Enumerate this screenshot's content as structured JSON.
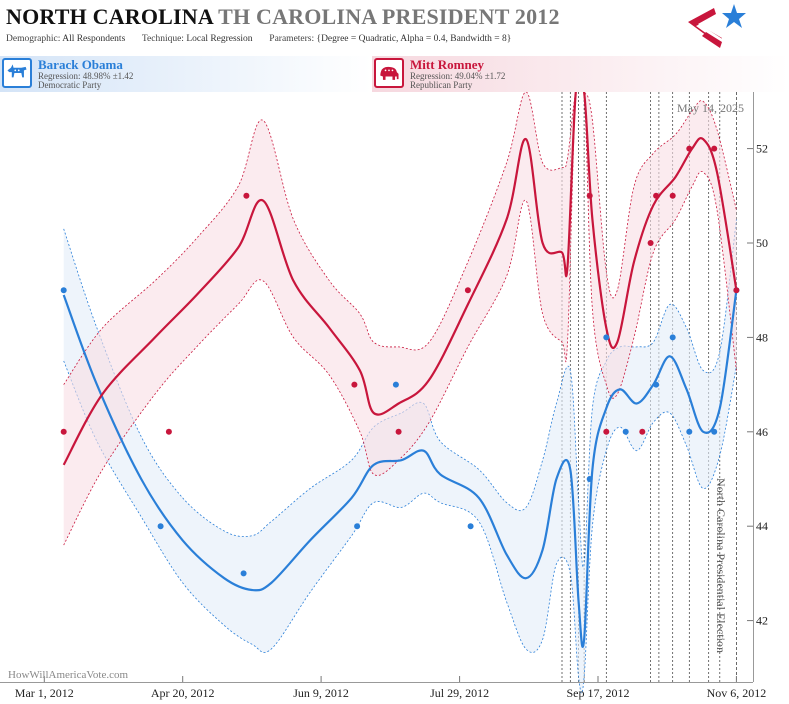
{
  "header": {
    "title_state": "NORTH CAROLINA",
    "title_rest": "TH CAROLINA PRESIDENT 2012",
    "demographic_label": "Demographic:",
    "demographic_value": "All Respondents",
    "technique_label": "Technique:",
    "technique_value": "Local Regression",
    "parameters_label": "Parameters:",
    "parameters_value": "{Degree = Quadratic, Alpha = 0.4, Bandwidth = 8}"
  },
  "candidates": [
    {
      "name": "Barack Obama",
      "regression": "Regression: 48.98% ±1.42",
      "party": "Democratic Party",
      "color": "#2a7fd8",
      "icon": "donkey-icon"
    },
    {
      "name": "Mitt Romney",
      "regression": "Regression: 49.04% ±1.72",
      "party": "Republican Party",
      "color": "#c8163c",
      "icon": "elephant-icon"
    }
  ],
  "date_stamp": "May 14, 2025",
  "watermark": "HowWillAmericaVote.com",
  "election_label": "North Carolina Presidential Election",
  "chart_data": {
    "type": "line",
    "x_axis": {
      "min": "2012-02-14",
      "max": "2012-11-12",
      "ticks": [
        "Mar 1, 2012",
        "Apr 20, 2012",
        "Jun 9, 2012",
        "Jul 29, 2012",
        "Sep 17, 2012",
        "Nov 6, 2012"
      ],
      "tick_dates": [
        "2012-03-01",
        "2012-04-20",
        "2012-06-09",
        "2012-07-29",
        "2012-09-17",
        "2012-11-06"
      ]
    },
    "y_axis": {
      "min": 40.7,
      "max": 53.2,
      "ticks": [
        42,
        44,
        46,
        48,
        50,
        52
      ],
      "position": "right"
    },
    "election_date": "2012-11-06",
    "poll_dates": [
      "2012-09-04",
      "2012-09-07",
      "2012-09-10",
      "2012-09-12",
      "2012-09-20",
      "2012-10-06",
      "2012-10-09",
      "2012-10-14",
      "2012-10-20",
      "2012-10-27",
      "2012-10-31"
    ],
    "series": [
      {
        "name": "Barack Obama",
        "color": "#2a7fd8",
        "points": [
          {
            "x": "2012-03-08",
            "y": 49
          },
          {
            "x": "2012-04-12",
            "y": 44
          },
          {
            "x": "2012-05-12",
            "y": 43
          },
          {
            "x": "2012-06-22",
            "y": 44
          },
          {
            "x": "2012-07-06",
            "y": 47
          },
          {
            "x": "2012-08-02",
            "y": 44
          },
          {
            "x": "2012-09-14",
            "y": 45
          },
          {
            "x": "2012-09-20",
            "y": 48
          },
          {
            "x": "2012-09-27",
            "y": 46
          },
          {
            "x": "2012-10-08",
            "y": 47
          },
          {
            "x": "2012-10-14",
            "y": 48
          },
          {
            "x": "2012-10-20",
            "y": 46
          },
          {
            "x": "2012-10-29",
            "y": 46
          },
          {
            "x": "2012-11-06",
            "y": 49
          }
        ],
        "fit": [
          {
            "x": "2012-03-08",
            "y": 48.9,
            "lo": 47.5,
            "hi": 50.3
          },
          {
            "x": "2012-03-20",
            "y": 47.0,
            "lo": 45.8,
            "hi": 48.2
          },
          {
            "x": "2012-04-05",
            "y": 45.0,
            "lo": 44.2,
            "hi": 45.9
          },
          {
            "x": "2012-04-20",
            "y": 43.7,
            "lo": 42.8,
            "hi": 44.6
          },
          {
            "x": "2012-05-05",
            "y": 42.9,
            "lo": 41.9,
            "hi": 43.9
          },
          {
            "x": "2012-05-15",
            "y": 42.65,
            "lo": 41.5,
            "hi": 43.8
          },
          {
            "x": "2012-05-22",
            "y": 42.8,
            "lo": 41.4,
            "hi": 44.1
          },
          {
            "x": "2012-06-05",
            "y": 43.7,
            "lo": 42.6,
            "hi": 44.8
          },
          {
            "x": "2012-06-20",
            "y": 44.6,
            "lo": 43.8,
            "hi": 45.4
          },
          {
            "x": "2012-06-28",
            "y": 45.3,
            "lo": 44.5,
            "hi": 46.1
          },
          {
            "x": "2012-07-08",
            "y": 45.4,
            "lo": 44.4,
            "hi": 46.4
          },
          {
            "x": "2012-07-16",
            "y": 45.6,
            "lo": 44.7,
            "hi": 46.6
          },
          {
            "x": "2012-07-22",
            "y": 45.1,
            "lo": 44.5,
            "hi": 45.8
          },
          {
            "x": "2012-08-05",
            "y": 44.6,
            "lo": 44.1,
            "hi": 45.2
          },
          {
            "x": "2012-08-15",
            "y": 43.4,
            "lo": 42.4,
            "hi": 44.5
          },
          {
            "x": "2012-08-22",
            "y": 42.9,
            "lo": 41.4,
            "hi": 44.4
          },
          {
            "x": "2012-08-28",
            "y": 43.5,
            "lo": 41.6,
            "hi": 45.4
          },
          {
            "x": "2012-09-02",
            "y": 45.0,
            "lo": 43.2,
            "hi": 46.6
          },
          {
            "x": "2012-09-07",
            "y": 45.2,
            "lo": 43.0,
            "hi": 47.3
          },
          {
            "x": "2012-09-10",
            "y": 42.4,
            "lo": 40.8,
            "hi": 44.5
          },
          {
            "x": "2012-09-12",
            "y": 41.6,
            "lo": 40.8,
            "hi": 43.2
          },
          {
            "x": "2012-09-15",
            "y": 45.2,
            "lo": 44.0,
            "hi": 46.5
          },
          {
            "x": "2012-09-20",
            "y": 46.5,
            "lo": 45.6,
            "hi": 47.5
          },
          {
            "x": "2012-09-25",
            "y": 46.9,
            "lo": 46.1,
            "hi": 47.8
          },
          {
            "x": "2012-10-01",
            "y": 46.6,
            "lo": 45.6,
            "hi": 47.8
          },
          {
            "x": "2012-10-07",
            "y": 47.0,
            "lo": 46.2,
            "hi": 47.9
          },
          {
            "x": "2012-10-13",
            "y": 47.6,
            "lo": 46.4,
            "hi": 48.7
          },
          {
            "x": "2012-10-19",
            "y": 46.9,
            "lo": 45.7,
            "hi": 48.2
          },
          {
            "x": "2012-10-25",
            "y": 46.0,
            "lo": 44.8,
            "hi": 47.3
          },
          {
            "x": "2012-10-31",
            "y": 46.5,
            "lo": 45.5,
            "hi": 47.7
          },
          {
            "x": "2012-11-06",
            "y": 49.0,
            "lo": 47.4,
            "hi": 50.5
          }
        ]
      },
      {
        "name": "Mitt Romney",
        "color": "#c8163c",
        "points": [
          {
            "x": "2012-03-08",
            "y": 46
          },
          {
            "x": "2012-04-15",
            "y": 46
          },
          {
            "x": "2012-05-13",
            "y": 51
          },
          {
            "x": "2012-06-21",
            "y": 47
          },
          {
            "x": "2012-07-07",
            "y": 46
          },
          {
            "x": "2012-08-01",
            "y": 49
          },
          {
            "x": "2012-09-14",
            "y": 51
          },
          {
            "x": "2012-09-20",
            "y": 46
          },
          {
            "x": "2012-10-03",
            "y": 46
          },
          {
            "x": "2012-10-06",
            "y": 50
          },
          {
            "x": "2012-10-08",
            "y": 51
          },
          {
            "x": "2012-10-14",
            "y": 51
          },
          {
            "x": "2012-10-20",
            "y": 52
          },
          {
            "x": "2012-10-29",
            "y": 52
          },
          {
            "x": "2012-11-06",
            "y": 49
          }
        ],
        "fit": [
          {
            "x": "2012-03-08",
            "y": 45.3,
            "lo": 43.6,
            "hi": 47.0
          },
          {
            "x": "2012-03-22",
            "y": 46.8,
            "lo": 45.2,
            "hi": 48.2
          },
          {
            "x": "2012-04-10",
            "y": 48.0,
            "lo": 46.8,
            "hi": 49.2
          },
          {
            "x": "2012-04-25",
            "y": 48.9,
            "lo": 47.8,
            "hi": 50.1
          },
          {
            "x": "2012-05-10",
            "y": 49.9,
            "lo": 48.7,
            "hi": 51.2
          },
          {
            "x": "2012-05-19",
            "y": 50.9,
            "lo": 49.2,
            "hi": 52.6
          },
          {
            "x": "2012-05-30",
            "y": 49.2,
            "lo": 48.0,
            "hi": 50.5
          },
          {
            "x": "2012-06-12",
            "y": 48.2,
            "lo": 47.2,
            "hi": 49.2
          },
          {
            "x": "2012-06-23",
            "y": 47.3,
            "lo": 46.0,
            "hi": 48.5
          },
          {
            "x": "2012-06-28",
            "y": 46.4,
            "lo": 45.1,
            "hi": 47.9
          },
          {
            "x": "2012-07-07",
            "y": 46.6,
            "lo": 45.4,
            "hi": 47.8
          },
          {
            "x": "2012-07-18",
            "y": 47.1,
            "lo": 46.2,
            "hi": 47.9
          },
          {
            "x": "2012-08-01",
            "y": 48.7,
            "lo": 47.8,
            "hi": 49.6
          },
          {
            "x": "2012-08-15",
            "y": 50.5,
            "lo": 49.3,
            "hi": 51.7
          },
          {
            "x": "2012-08-22",
            "y": 52.2,
            "lo": 50.9,
            "hi": 53.2
          },
          {
            "x": "2012-08-28",
            "y": 50.0,
            "lo": 48.5,
            "hi": 51.7
          },
          {
            "x": "2012-09-04",
            "y": 49.8,
            "lo": 47.9,
            "hi": 51.6
          },
          {
            "x": "2012-09-06",
            "y": 49.5,
            "lo": 47.9,
            "hi": 51.8
          },
          {
            "x": "2012-09-09",
            "y": 53.2,
            "lo": 53.2,
            "hi": 53.2
          },
          {
            "x": "2012-09-12",
            "y": 53.2,
            "lo": 53.2,
            "hi": 53.2
          },
          {
            "x": "2012-09-15",
            "y": 50.5,
            "lo": 48.6,
            "hi": 52.6
          },
          {
            "x": "2012-09-20",
            "y": 48.2,
            "lo": 47.0,
            "hi": 49.4
          },
          {
            "x": "2012-09-24",
            "y": 47.9,
            "lo": 46.8,
            "hi": 49.0
          },
          {
            "x": "2012-09-30",
            "y": 49.6,
            "lo": 48.0,
            "hi": 51.2
          },
          {
            "x": "2012-10-07",
            "y": 50.8,
            "lo": 49.8,
            "hi": 51.9
          },
          {
            "x": "2012-10-15",
            "y": 51.4,
            "lo": 50.5,
            "hi": 52.3
          },
          {
            "x": "2012-10-21",
            "y": 52.0,
            "lo": 51.2,
            "hi": 52.8
          },
          {
            "x": "2012-10-25",
            "y": 52.2,
            "lo": 51.5,
            "hi": 53.0
          },
          {
            "x": "2012-10-30",
            "y": 51.5,
            "lo": 50.7,
            "hi": 52.4
          },
          {
            "x": "2012-11-06",
            "y": 49.0,
            "lo": 47.3,
            "hi": 50.7
          }
        ]
      }
    ]
  }
}
